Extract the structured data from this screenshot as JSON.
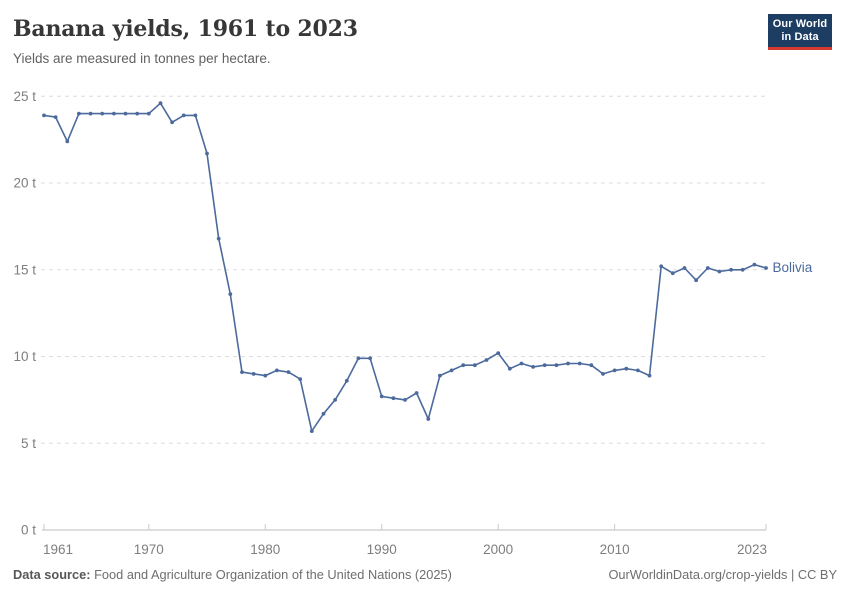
{
  "header": {
    "title": "Banana yields, 1961 to 2023",
    "subtitle": "Yields are measured in tonnes per hectare.",
    "logo": {
      "line1": "Our World",
      "line2": "in Data"
    }
  },
  "chart_data": {
    "type": "line",
    "title": "Banana yields, 1961 to 2023",
    "subtitle": "Yields are measured in tonnes per hectare.",
    "entity": "Bolivia",
    "unit": "tonnes per hectare",
    "x": [
      1961,
      1962,
      1963,
      1964,
      1965,
      1966,
      1967,
      1968,
      1969,
      1970,
      1971,
      1972,
      1973,
      1974,
      1975,
      1976,
      1977,
      1978,
      1979,
      1980,
      1981,
      1982,
      1983,
      1984,
      1985,
      1986,
      1987,
      1988,
      1989,
      1990,
      1991,
      1992,
      1993,
      1994,
      1995,
      1996,
      1997,
      1998,
      1999,
      2000,
      2001,
      2002,
      2003,
      2004,
      2005,
      2006,
      2007,
      2008,
      2009,
      2010,
      2011,
      2012,
      2013,
      2014,
      2015,
      2016,
      2017,
      2018,
      2019,
      2020,
      2021,
      2022,
      2023
    ],
    "series": [
      {
        "name": "Bolivia",
        "values": [
          23.9,
          23.8,
          22.4,
          24.0,
          24.0,
          24.0,
          24.0,
          24.0,
          24.0,
          24.0,
          24.6,
          23.5,
          23.9,
          23.9,
          21.7,
          16.8,
          13.6,
          9.1,
          9.0,
          8.9,
          9.2,
          9.1,
          8.7,
          5.7,
          6.7,
          7.5,
          8.6,
          9.9,
          9.9,
          7.7,
          7.6,
          7.5,
          7.9,
          6.4,
          8.9,
          9.2,
          9.5,
          9.5,
          9.8,
          10.2,
          9.3,
          9.6,
          9.4,
          9.5,
          9.5,
          9.6,
          9.6,
          9.5,
          9.0,
          9.2,
          9.3,
          9.2,
          8.9,
          15.2,
          14.8,
          15.1,
          14.4,
          15.1,
          14.9,
          15.0,
          15.0,
          15.3,
          15.1
        ]
      }
    ],
    "xlabel": "",
    "ylabel": "tonnes per hectare",
    "ylim": [
      0,
      25
    ],
    "yticks": [
      0,
      5,
      10,
      15,
      20,
      25
    ],
    "ytick_labels": [
      "0 t",
      "5 t",
      "10 t",
      "15 t",
      "20 t",
      "25 t"
    ],
    "xticks": [
      1961,
      1970,
      1980,
      1990,
      2000,
      2010,
      2023
    ],
    "grid": "horizontal-dashed",
    "legend_position": "end-of-line-label",
    "end_label": "Bolivia"
  },
  "footer": {
    "source_label": "Data source:",
    "source_text": "Food and Agriculture Organization of the United Nations (2025)",
    "credit": "OurWorldinData.org/crop-yields | CC BY"
  },
  "colors": {
    "line": "#4c6a9c",
    "end_label": "#4c6a9c",
    "grid": "#dedede",
    "axis_line": "#bcbcbc",
    "tick_mark": "#cbcbcb",
    "axis_text": "#7e7e7e",
    "logo_bg": "#1d3d63",
    "logo_accent": "#d5392f"
  }
}
